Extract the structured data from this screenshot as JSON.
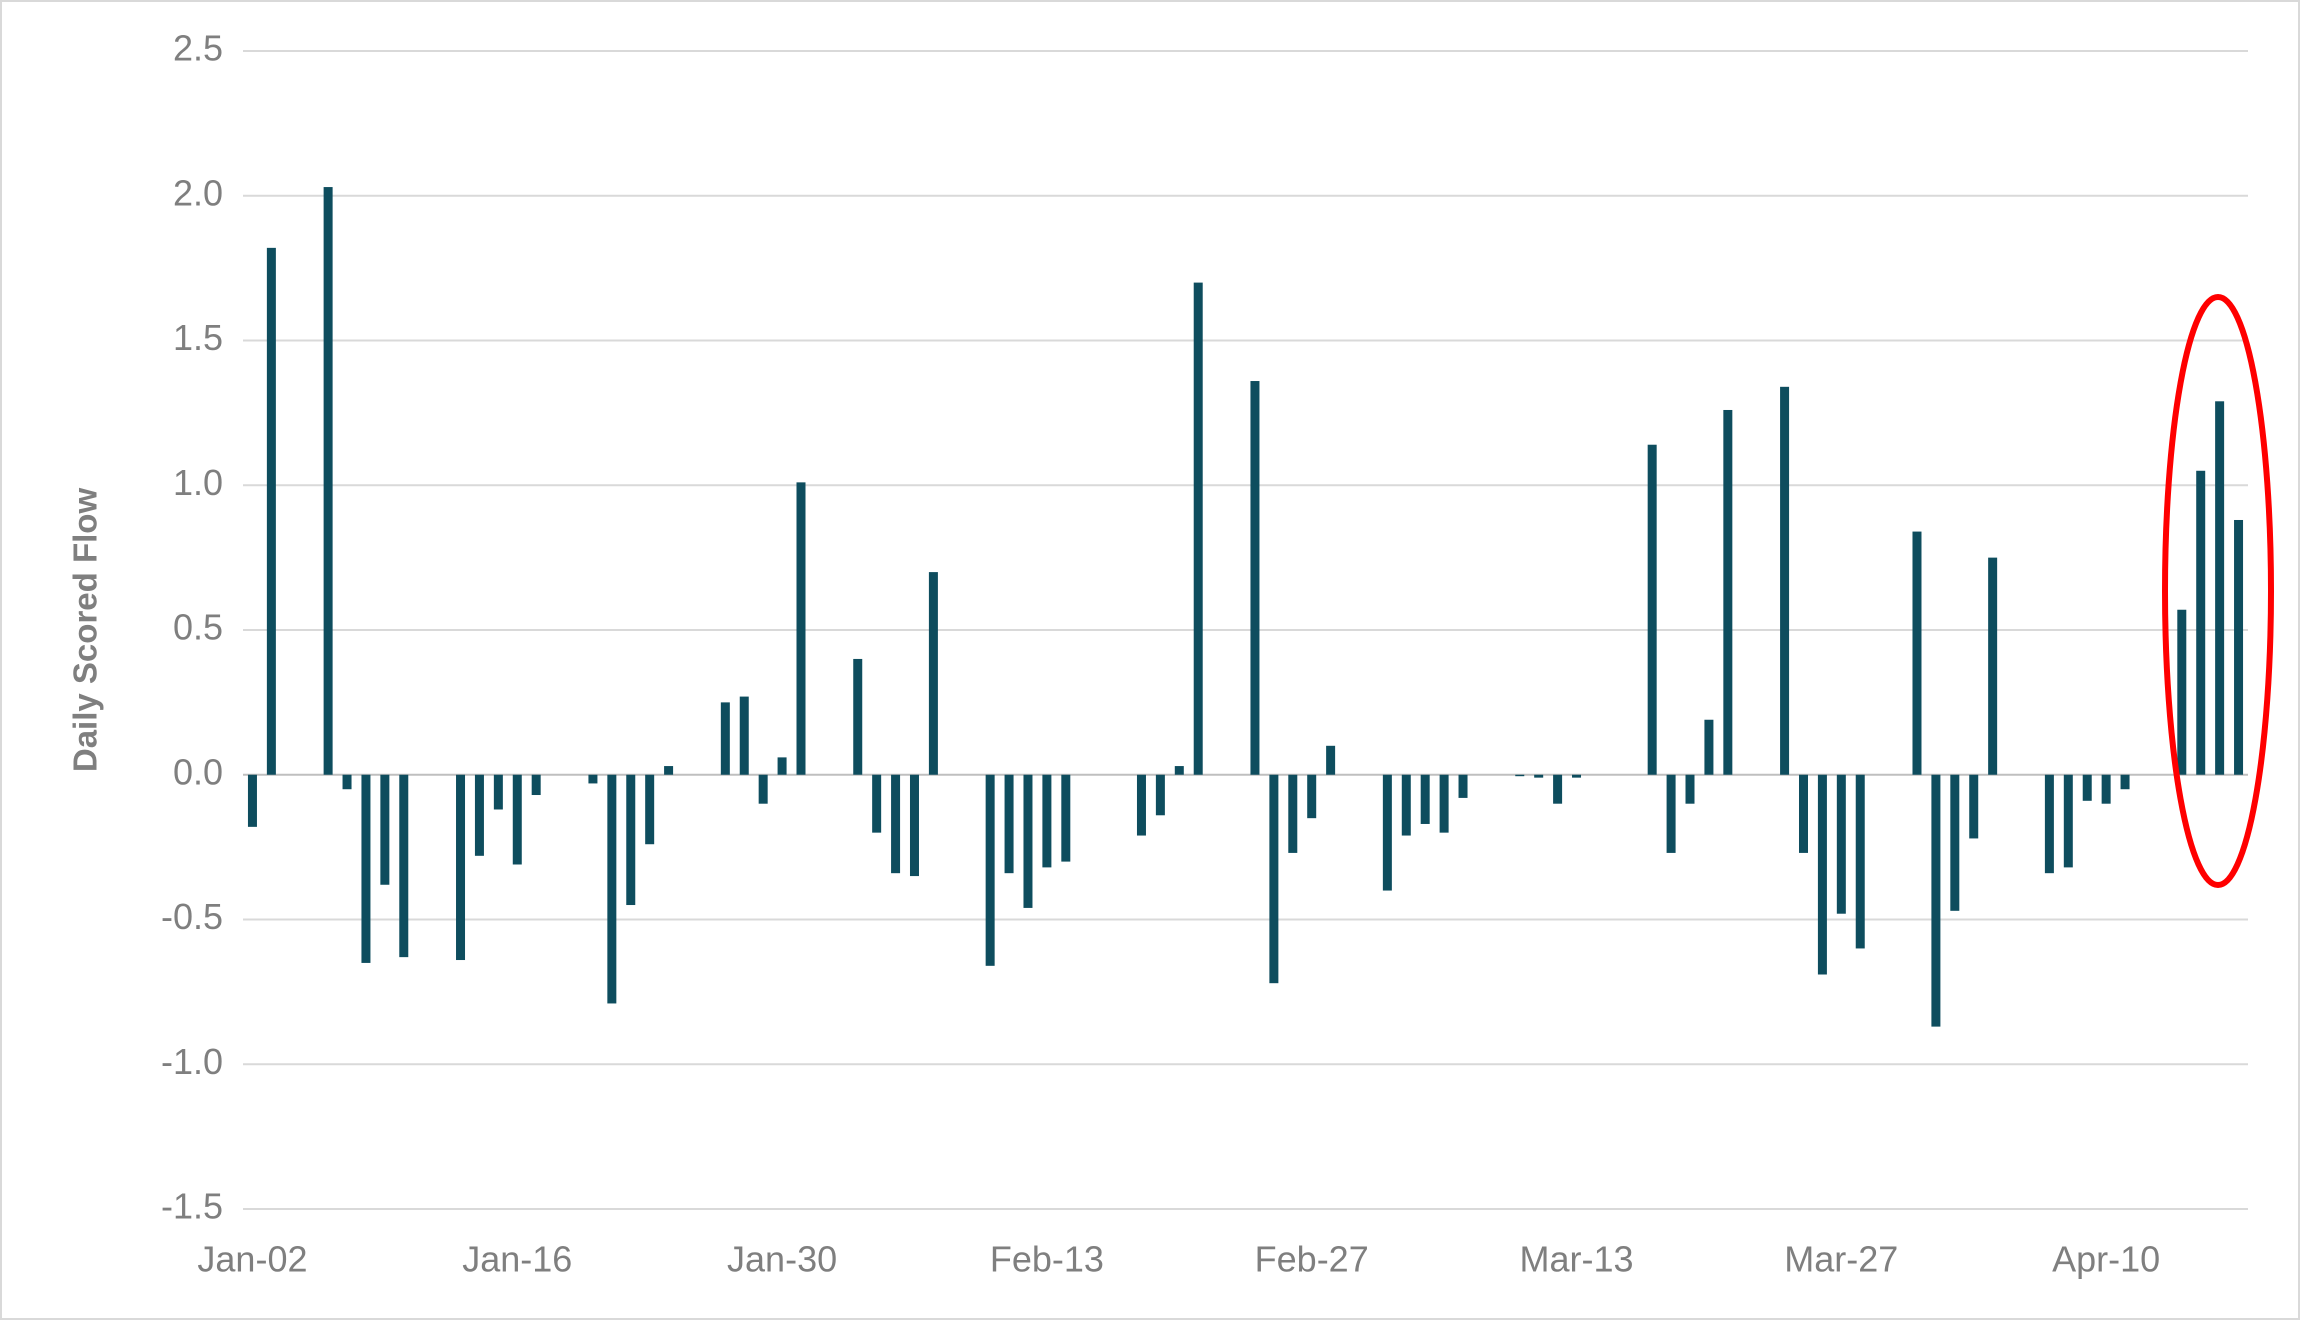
{
  "chart_data": {
    "type": "bar",
    "y_label": "Daily Scored Flow",
    "color": "#0e4d5e",
    "grid": true,
    "ylim": [
      -1.5,
      2.5
    ],
    "yticks": [
      -1.5,
      {
        "value": -1,
        "label": "-1.0"
      },
      -0.5,
      {
        "value": 0,
        "label": "0.0"
      },
      0.5,
      {
        "value": 1,
        "label": "1.0"
      },
      1.5,
      {
        "value": 2,
        "label": "2.0"
      },
      2.5
    ],
    "categories": [
      "Jan-02",
      null,
      null,
      null,
      null,
      null,
      null,
      null,
      null,
      null,
      null,
      null,
      null,
      null,
      "Jan-16",
      null,
      null,
      null,
      null,
      null,
      null,
      null,
      null,
      null,
      null,
      null,
      null,
      null,
      "Jan-30",
      null,
      null,
      null,
      null,
      null,
      null,
      null,
      null,
      null,
      null,
      null,
      null,
      null,
      "Feb-13",
      null,
      null,
      null,
      null,
      null,
      null,
      null,
      null,
      null,
      null,
      null,
      null,
      null,
      "Feb-27",
      null,
      null,
      null,
      null,
      null,
      null,
      null,
      null,
      null,
      null,
      null,
      null,
      null,
      "Mar-13",
      null,
      null,
      null,
      null,
      null,
      null,
      null,
      null,
      null,
      null,
      null,
      null,
      null,
      "Mar-27",
      null,
      null,
      null,
      null,
      null,
      null,
      null,
      null,
      null,
      null,
      null,
      null,
      null,
      "Apr-10",
      null,
      null,
      null,
      null,
      null,
      null,
      null
    ],
    "values": [
      -0.18,
      1.82,
      null,
      null,
      2.03,
      -0.05,
      -0.65,
      -0.38,
      -0.63,
      null,
      null,
      -0.64,
      -0.28,
      -0.12,
      -0.31,
      -0.07,
      null,
      null,
      -0.03,
      -0.79,
      -0.45,
      -0.24,
      0.03,
      null,
      null,
      0.25,
      0.27,
      -0.1,
      0.06,
      1.01,
      null,
      null,
      0.4,
      -0.2,
      -0.34,
      -0.35,
      0.7,
      null,
      null,
      -0.66,
      -0.34,
      -0.46,
      -0.32,
      -0.3,
      null,
      null,
      null,
      -0.21,
      -0.14,
      0.03,
      1.7,
      null,
      null,
      1.36,
      -0.72,
      -0.27,
      -0.15,
      0.1,
      null,
      null,
      -0.4,
      -0.21,
      -0.17,
      -0.2,
      -0.08,
      null,
      null,
      -0.005,
      -0.01,
      -0.1,
      -0.01,
      null,
      null,
      null,
      1.14,
      -0.27,
      -0.1,
      0.19,
      1.26,
      null,
      null,
      1.34,
      -0.27,
      -0.69,
      -0.48,
      -0.6,
      null,
      null,
      0.84,
      -0.87,
      -0.47,
      -0.22,
      0.75,
      null,
      null,
      -0.34,
      -0.32,
      -0.09,
      -0.1,
      -0.05,
      null,
      null,
      0.57,
      1.05,
      1.29,
      0.88
    ]
  }
}
